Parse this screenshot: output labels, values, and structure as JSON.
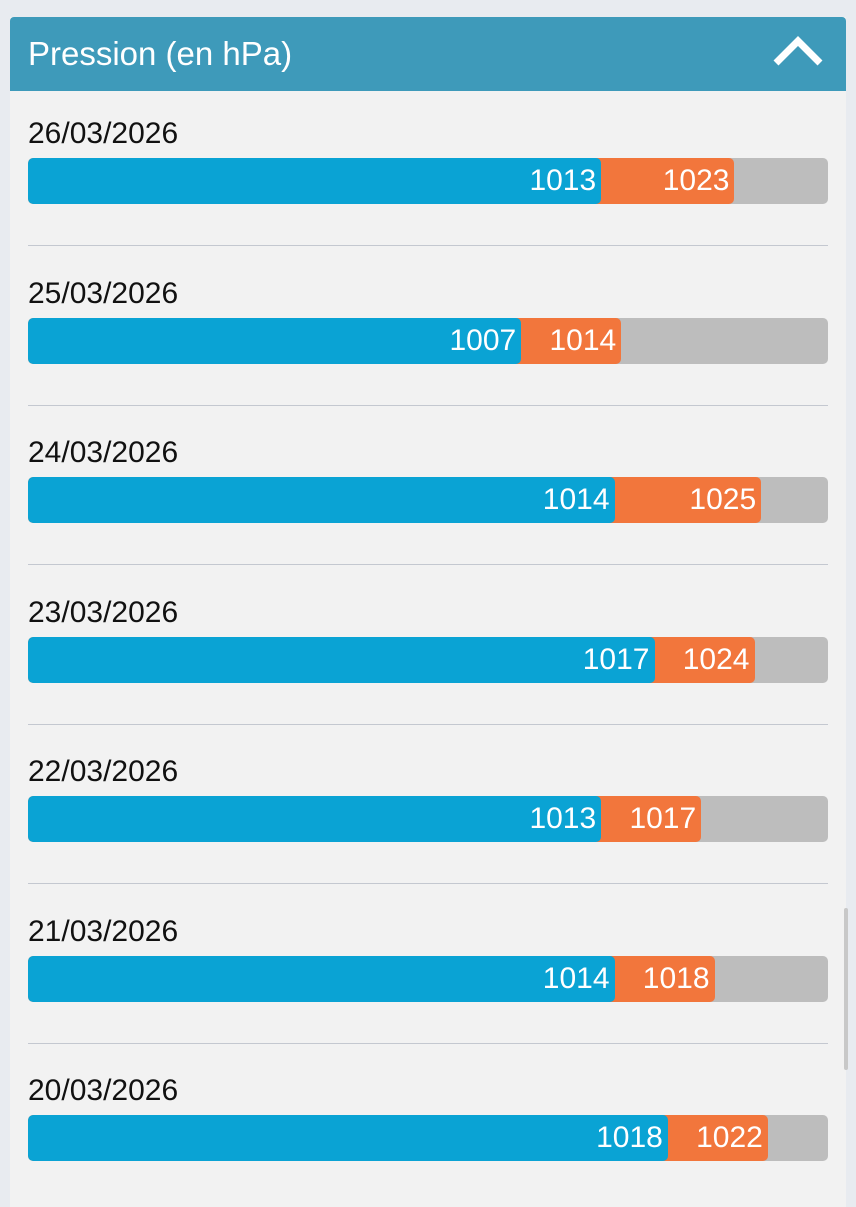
{
  "header": {
    "title": "Pression (en hPa)",
    "collapse_icon": "chevron-up-icon"
  },
  "colors": {
    "header": "#3e9aba",
    "min_bar": "#0aa3d4",
    "max_bar": "#f2763c",
    "track": "#bdbdbd"
  },
  "rows": [
    {
      "date": "26/03/2026",
      "min": "1013",
      "max": "1023"
    },
    {
      "date": "25/03/2026",
      "min": "1007",
      "max": "1014"
    },
    {
      "date": "24/03/2026",
      "min": "1014",
      "max": "1025"
    },
    {
      "date": "23/03/2026",
      "min": "1017",
      "max": "1024"
    },
    {
      "date": "22/03/2026",
      "min": "1013",
      "max": "1017"
    },
    {
      "date": "21/03/2026",
      "min": "1014",
      "max": "1018"
    },
    {
      "date": "20/03/2026",
      "min": "1018",
      "max": "1022"
    }
  ]
}
